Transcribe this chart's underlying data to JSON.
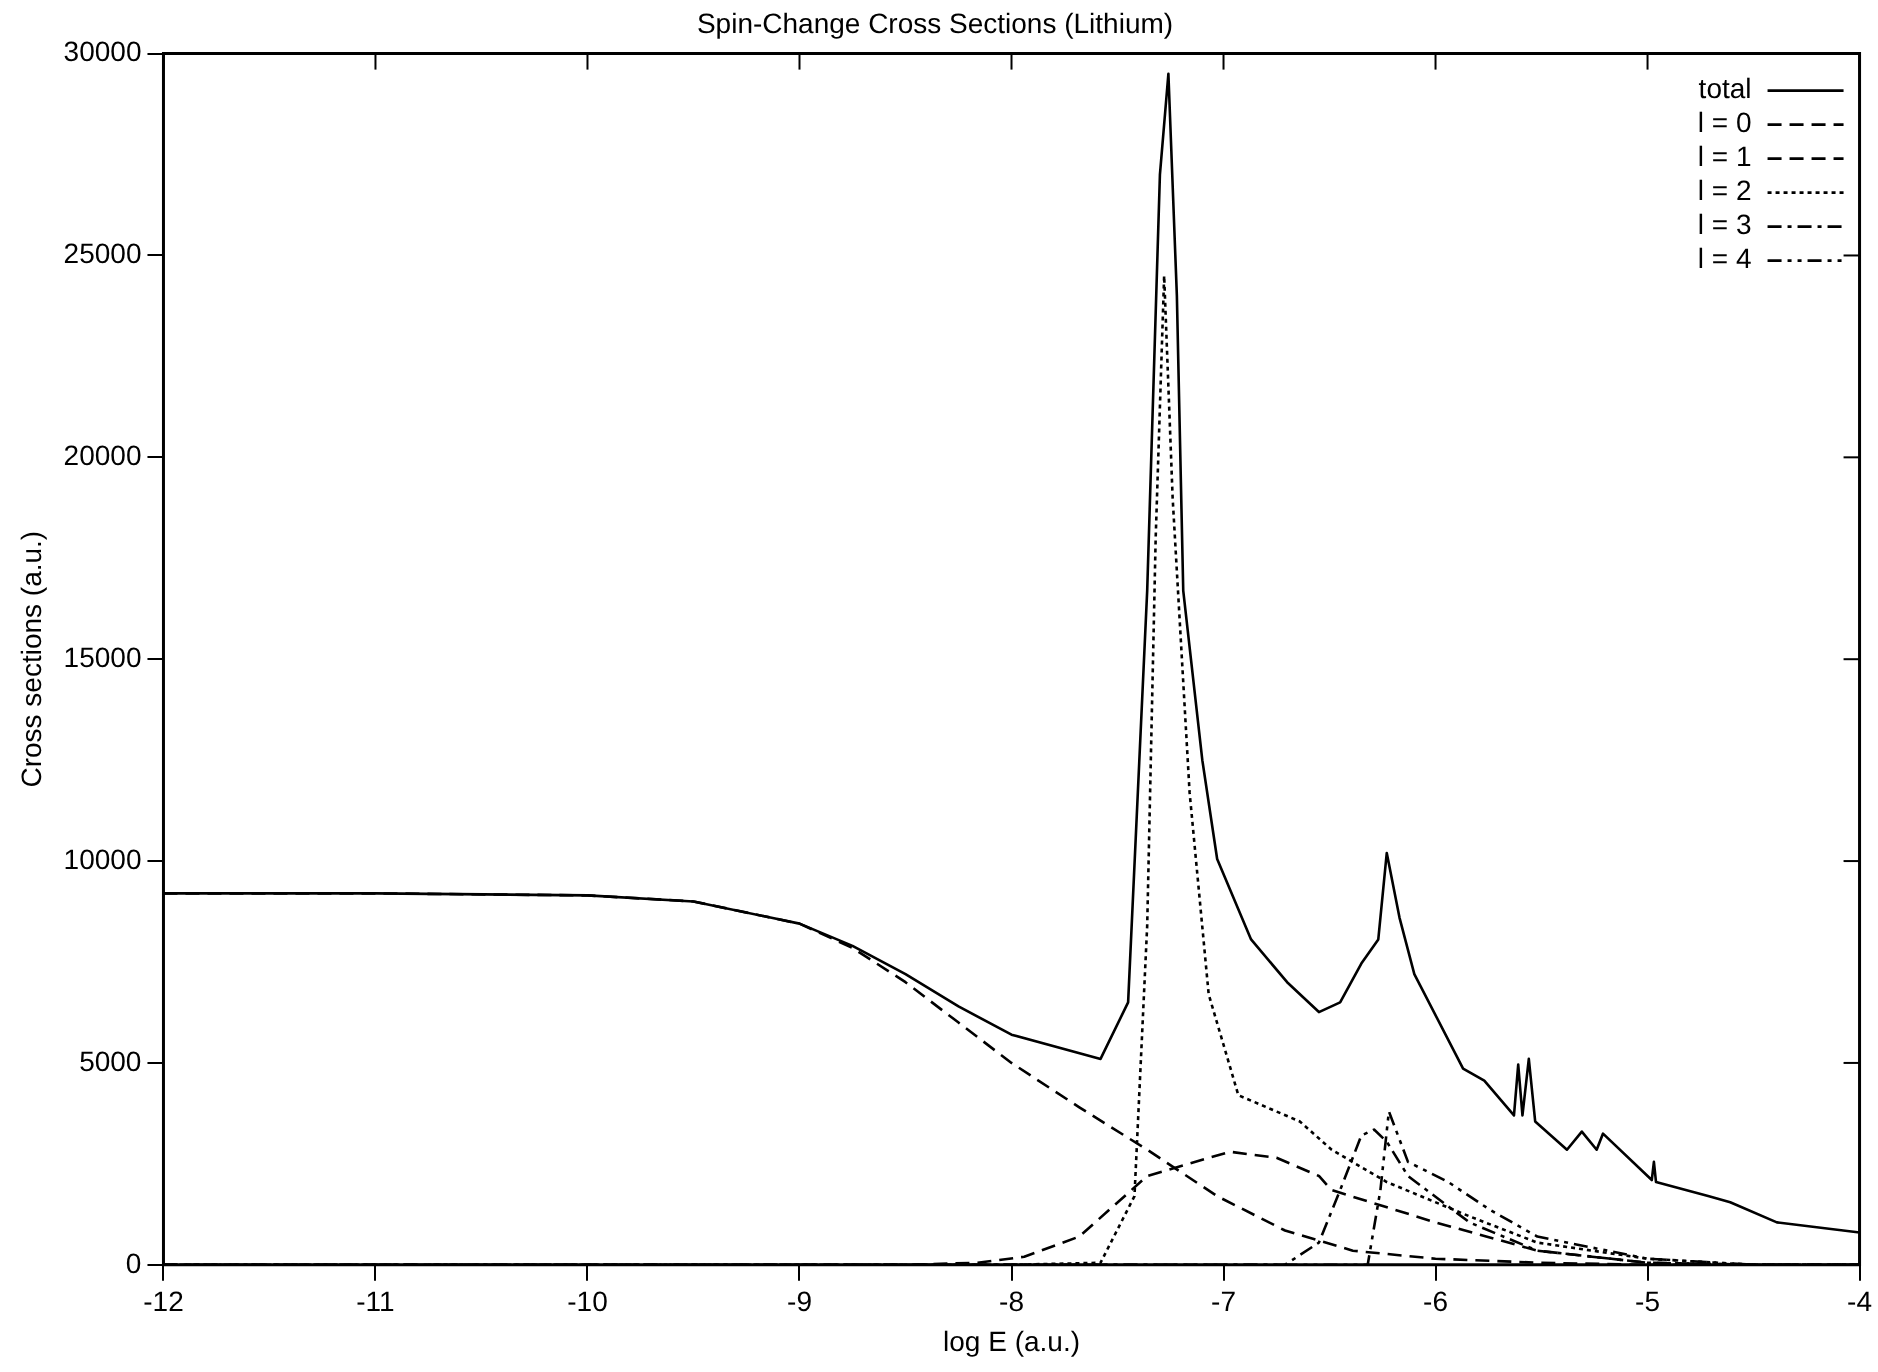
{
  "chart_data": {
    "type": "line",
    "title": "Spin-Change Cross Sections (Lithium)",
    "xlabel": "log E (a.u.)",
    "ylabel": "Cross sections (a.u.)",
    "xlim": [
      -12,
      -4
    ],
    "xticks": [
      -12,
      -11,
      -10,
      -9,
      -8,
      -7,
      -6,
      -5,
      -4
    ],
    "ylim": [
      0,
      30000
    ],
    "yticks": [
      0,
      5000,
      10000,
      15000,
      20000,
      25000,
      30000
    ],
    "grid": false,
    "legend": "top right",
    "marker": "none",
    "series": [
      {
        "name": "total",
        "color": "#000000",
        "line_style": "solid",
        "x": [
          -12,
          -11,
          -10,
          -9.5,
          -9,
          -8.75,
          -8.5,
          -8.25,
          -8,
          -7.58,
          -7.45,
          -7.36,
          -7.3,
          -7.26,
          -7.22,
          -7.19,
          -7.1,
          -7.03,
          -6.87,
          -6.7,
          -6.55,
          -6.45,
          -6.35,
          -6.27,
          -6.23,
          -6.17,
          -6.1,
          -5.87,
          -5.77,
          -5.63,
          -5.61,
          -5.59,
          -5.56,
          -5.53,
          -5.38,
          -5.31,
          -5.24,
          -5.21,
          -4.98,
          -4.97,
          -4.96,
          -4.71,
          -4.61,
          -4.39,
          -4
        ],
        "values": [
          9200,
          9200,
          9150,
          9000,
          8450,
          7900,
          7200,
          6400,
          5700,
          5100,
          6500,
          16700,
          27000,
          29500,
          24000,
          16700,
          12500,
          10050,
          8060,
          7000,
          6260,
          6500,
          7460,
          8060,
          10200,
          8600,
          7200,
          4860,
          4560,
          3700,
          4960,
          3700,
          5100,
          3550,
          2850,
          3300,
          2850,
          3250,
          2100,
          2550,
          2050,
          1700,
          1550,
          1050,
          800
        ]
      },
      {
        "name": "l = 0",
        "color": "#000000",
        "line_style": "dashed",
        "x": [
          -12,
          -11,
          -10,
          -9.5,
          -9,
          -8.75,
          -8.5,
          -8.25,
          -8,
          -7.68,
          -7.36,
          -7.03,
          -6.71,
          -6.39,
          -6,
          -5.5,
          -5,
          -4.5,
          -4
        ],
        "values": [
          9200,
          9200,
          9150,
          9000,
          8450,
          7850,
          7000,
          6000,
          5000,
          3900,
          2850,
          1700,
          850,
          350,
          150,
          50,
          0,
          0,
          0
        ]
      },
      {
        "name": "l = 1",
        "color": "#000000",
        "line_style": "dashed",
        "x": [
          -12,
          -9,
          -8.5,
          -8.16,
          -7.94,
          -7.68,
          -7.36,
          -6.97,
          -6.75,
          -6.55,
          -6.49,
          -6,
          -5.52,
          -5,
          -4.5,
          -4
        ],
        "values": [
          0,
          0,
          0,
          50,
          200,
          700,
          2200,
          2800,
          2650,
          2200,
          1850,
          1050,
          350,
          50,
          0,
          0
        ]
      },
      {
        "name": "l = 2",
        "color": "#000000",
        "line_style": "dotted",
        "x": [
          -12,
          -8,
          -7.58,
          -7.42,
          -7.36,
          -7.32,
          -7.28,
          -7.24,
          -7.16,
          -7.07,
          -6.93,
          -6.64,
          -6.49,
          -6.23,
          -5.84,
          -5.52,
          -5,
          -4.5,
          -4
        ],
        "values": [
          0,
          0,
          50,
          1700,
          8400,
          18000,
          24500,
          19000,
          11700,
          6700,
          4200,
          3550,
          2850,
          2050,
          1200,
          550,
          150,
          0,
          0
        ]
      },
      {
        "name": "l = 3",
        "color": "#000000",
        "line_style": "dashdot",
        "x": [
          -12,
          -7,
          -6.71,
          -6.55,
          -6.45,
          -6.35,
          -6.29,
          -6.23,
          -6.13,
          -5.84,
          -5.52,
          -5,
          -4.5,
          -4
        ],
        "values": [
          0,
          0,
          0,
          550,
          1850,
          3200,
          3350,
          3050,
          2200,
          1050,
          350,
          50,
          0,
          0
        ]
      },
      {
        "name": "l = 4",
        "color": "#000000",
        "line_style": "dashdotdot",
        "x": [
          -12,
          -6.5,
          -6.32,
          -6.26,
          -6.22,
          -6.13,
          -5.94,
          -5.74,
          -5.52,
          -5,
          -4.5,
          -4
        ],
        "values": [
          0,
          0,
          0,
          1850,
          3800,
          2550,
          2050,
          1350,
          700,
          150,
          0,
          0
        ]
      }
    ]
  }
}
